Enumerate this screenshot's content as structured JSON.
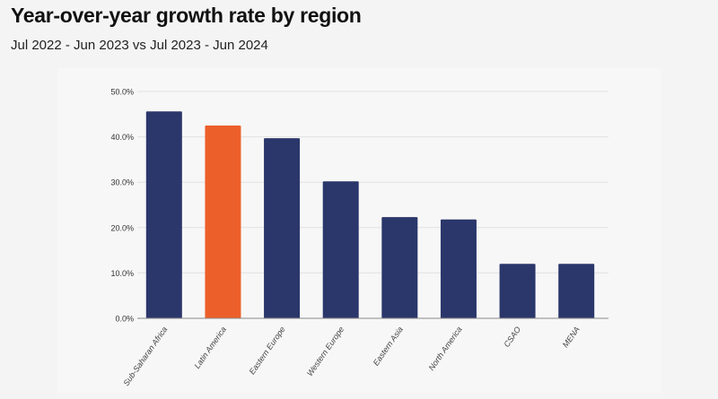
{
  "header": {
    "title": "Year-over-year growth rate by region",
    "subtitle": "Jul 2022 - Jun 2023 vs Jul 2023 - Jun 2024"
  },
  "chart_data": {
    "type": "bar",
    "title": "Year-over-year growth rate by region",
    "subtitle": "Jul 2022 - Jun 2023 vs Jul 2023 - Jun 2024",
    "xlabel": "",
    "ylabel": "",
    "categories": [
      "Sub-Saharan Africa",
      "Latin America",
      "Eastern Europe",
      "Western Europe",
      "Eastern Asia",
      "North America",
      "CSAO",
      "MENA"
    ],
    "values": [
      45.6,
      42.5,
      39.7,
      30.2,
      22.3,
      21.8,
      12.0,
      12.0
    ],
    "colors": [
      "#2b376b",
      "#ec5f2a",
      "#2b376b",
      "#2b376b",
      "#2b376b",
      "#2b376b",
      "#2b376b",
      "#2b376b"
    ],
    "ylim": [
      0,
      50
    ],
    "yticks": [
      "0.0%",
      "10.0%",
      "20.0%",
      "30.0%",
      "40.0%",
      "50.0%"
    ],
    "grid": true,
    "legend": "none"
  }
}
